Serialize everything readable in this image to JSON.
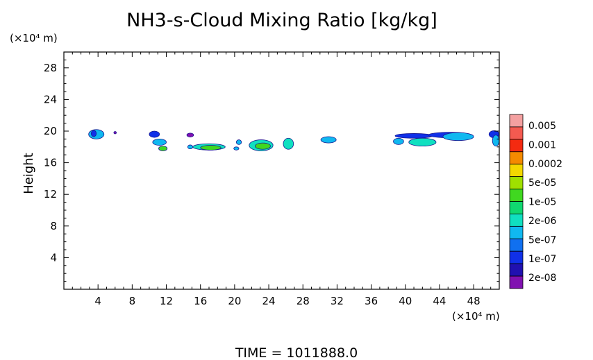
{
  "title": "NH3-s-Cloud Mixing Ratio [kg/kg]",
  "time_label": "TIME = 1011888.0",
  "chart_data": {
    "type": "heatmap",
    "title": "NH3-s-Cloud Mixing Ratio [kg/kg]",
    "ylabel": "Height",
    "y_unit": "(×10⁴ m)",
    "x_unit": "(×10⁴ m)",
    "xlim": [
      0,
      51
    ],
    "ylim": [
      0,
      30
    ],
    "xticks": [
      4,
      8,
      12,
      16,
      20,
      24,
      28,
      32,
      36,
      40,
      44,
      48
    ],
    "yticks": [
      4,
      8,
      12,
      16,
      20,
      24,
      28
    ],
    "colorbar": {
      "labels": [
        "0.005",
        "0.001",
        "0.0002",
        "5e-05",
        "1e-05",
        "2e-06",
        "5e-07",
        "1e-07",
        "2e-08"
      ],
      "colors": [
        "#f4a0a0",
        "#f45a50",
        "#f42a10",
        "#f48a00",
        "#f4d800",
        "#a0e000",
        "#40d820",
        "#10d870",
        "#10e0c0",
        "#10b8f0",
        "#1070f0",
        "#1030e8",
        "#2010b0",
        "#8010b0"
      ]
    },
    "regions": [
      {
        "x": 3.8,
        "y": 19.6,
        "rx": 0.9,
        "ry": 0.6,
        "level": "5e-07"
      },
      {
        "x": 3.5,
        "y": 19.7,
        "rx": 0.3,
        "ry": 0.4,
        "level": "1e-07"
      },
      {
        "x": 6.0,
        "y": 19.8,
        "rx": 0.15,
        "ry": 0.15,
        "level": "2e-08"
      },
      {
        "x": 10.6,
        "y": 19.6,
        "rx": 0.6,
        "ry": 0.4,
        "level": "1e-07"
      },
      {
        "x": 11.2,
        "y": 18.6,
        "rx": 0.8,
        "ry": 0.4,
        "level": "5e-07"
      },
      {
        "x": 11.6,
        "y": 17.8,
        "rx": 0.5,
        "ry": 0.3,
        "level": "1e-05"
      },
      {
        "x": 14.8,
        "y": 19.5,
        "rx": 0.4,
        "ry": 0.25,
        "level": "2e-08"
      },
      {
        "x": 14.8,
        "y": 18.0,
        "rx": 0.3,
        "ry": 0.25,
        "level": "5e-07"
      },
      {
        "x": 17.0,
        "y": 18.0,
        "rx": 1.9,
        "ry": 0.4,
        "level": "2e-06"
      },
      {
        "x": 17.2,
        "y": 17.9,
        "rx": 1.2,
        "ry": 0.3,
        "level": "1e-05"
      },
      {
        "x": 20.5,
        "y": 18.6,
        "rx": 0.3,
        "ry": 0.3,
        "level": "5e-07"
      },
      {
        "x": 20.2,
        "y": 17.8,
        "rx": 0.3,
        "ry": 0.2,
        "level": "5e-07"
      },
      {
        "x": 23.1,
        "y": 18.2,
        "rx": 1.4,
        "ry": 0.7,
        "level": "2e-06"
      },
      {
        "x": 23.3,
        "y": 18.1,
        "rx": 0.9,
        "ry": 0.4,
        "level": "1e-05"
      },
      {
        "x": 26.3,
        "y": 18.4,
        "rx": 0.6,
        "ry": 0.7,
        "level": "2e-06"
      },
      {
        "x": 31.0,
        "y": 18.9,
        "rx": 0.9,
        "ry": 0.4,
        "level": "5e-07"
      },
      {
        "x": 39.2,
        "y": 18.7,
        "rx": 0.6,
        "ry": 0.4,
        "level": "5e-07"
      },
      {
        "x": 41.0,
        "y": 19.4,
        "rx": 2.2,
        "ry": 0.3,
        "level": "1e-07"
      },
      {
        "x": 42.0,
        "y": 18.6,
        "rx": 1.6,
        "ry": 0.5,
        "level": "2e-06"
      },
      {
        "x": 45.2,
        "y": 19.5,
        "rx": 2.5,
        "ry": 0.35,
        "level": "1e-07"
      },
      {
        "x": 46.2,
        "y": 19.3,
        "rx": 1.8,
        "ry": 0.5,
        "level": "5e-07"
      },
      {
        "x": 50.4,
        "y": 19.6,
        "rx": 0.6,
        "ry": 0.45,
        "level": "1e-07"
      },
      {
        "x": 50.6,
        "y": 18.8,
        "rx": 0.4,
        "ry": 0.7,
        "level": "5e-07"
      }
    ]
  }
}
